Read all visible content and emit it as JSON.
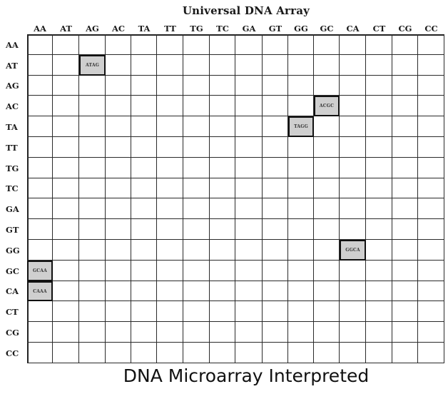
{
  "title": "Universal DNA Array",
  "caption": "DNA Microarray Interpreted",
  "columns": [
    "AA",
    "AT",
    "AG",
    "AC",
    "TA",
    "TT",
    "TG",
    "TC",
    "GA",
    "GT",
    "GG",
    "GC",
    "CA",
    "CT",
    "CG",
    "CC"
  ],
  "rows": [
    "AA",
    "AT",
    "AG",
    "AC",
    "TA",
    "TT",
    "TG",
    "TC",
    "GA",
    "GT",
    "GG",
    "GC",
    "CA",
    "CT",
    "CG",
    "CC"
  ],
  "spots": [
    {
      "label": "ATAG",
      "row": "AT",
      "col": "AG"
    },
    {
      "label": "ACGC",
      "row": "AC",
      "col": "GC"
    },
    {
      "label": "TAGG",
      "row": "TA",
      "col": "GG"
    },
    {
      "label": "GGCA",
      "row": "GG",
      "col": "CA"
    },
    {
      "label": "GCAA",
      "row": "GC",
      "col": "AA"
    },
    {
      "label": "CAAA",
      "row": "CA",
      "col": "AA"
    }
  ],
  "colors": {
    "spot_fill": "#cfcfcf",
    "grid_line": "#2a2a2a"
  }
}
